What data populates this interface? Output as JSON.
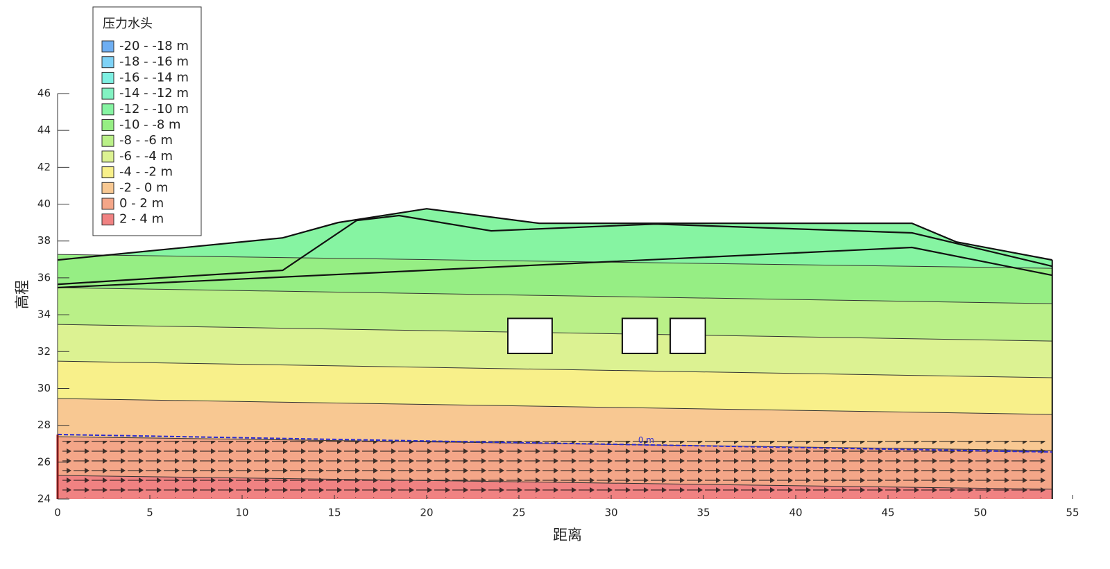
{
  "chart_data": {
    "type": "contour",
    "xlabel": "距离",
    "ylabel": "高程",
    "legend_title": "压力水头",
    "xlim": [
      0,
      55
    ],
    "ylim": [
      24,
      46
    ],
    "xticks": [
      0,
      5,
      10,
      15,
      20,
      25,
      30,
      35,
      40,
      45,
      50,
      55
    ],
    "yticks": [
      24,
      26,
      28,
      30,
      32,
      34,
      36,
      38,
      40,
      42,
      44,
      46
    ],
    "surface": {
      "x": [
        0,
        12.2,
        15.2,
        20.0,
        26.1,
        46.3,
        48.7,
        53.9
      ],
      "y": [
        36.97,
        38.17,
        39.0,
        39.75,
        38.96,
        38.96,
        37.95,
        36.97
      ]
    },
    "layers": [
      {
        "x": [
          0,
          12.2,
          16.2,
          18.5,
          23.5,
          32.4,
          46.3,
          53.9
        ],
        "y": [
          35.65,
          36.41,
          39.11,
          39.38,
          38.55,
          38.92,
          38.44,
          36.63
        ]
      },
      {
        "x": [
          0,
          46.3,
          53.9
        ],
        "y": [
          35.47,
          37.65,
          36.14
        ]
      }
    ],
    "openings": [
      {
        "x": [
          24.4,
          26.8
        ],
        "y": [
          31.9,
          33.8
        ]
      },
      {
        "x": [
          30.6,
          32.5
        ],
        "y": [
          31.9,
          33.8
        ]
      },
      {
        "x": [
          33.2,
          35.1
        ],
        "y": [
          31.9,
          33.8
        ]
      }
    ],
    "phreatic": {
      "label": "0 m",
      "color": "#2a2ad0",
      "x": [
        0,
        53.9
      ],
      "y": [
        27.5,
        26.55
      ]
    },
    "series": [
      {
        "name": "-20 - -18 m",
        "color": "#6eaef2"
      },
      {
        "name": "-18 - -16 m",
        "color": "#7ed2f6"
      },
      {
        "name": "-16 - -14 m",
        "color": "#7ef0e2"
      },
      {
        "name": "-14 - -12 m",
        "color": "#82f2c2"
      },
      {
        "name": "-12 - -10 m",
        "color": "#86f4a2",
        "x": [
          0,
          53.9
        ],
        "y": [
          37.27,
          36.52
        ]
      },
      {
        "name": "-10 - -8 m",
        "color": "#96ee84",
        "x": [
          0,
          53.9
        ],
        "y": [
          35.47,
          34.6
        ]
      },
      {
        "name": "-8 - -6 m",
        "color": "#baf088",
        "x": [
          0,
          53.9
        ],
        "y": [
          33.47,
          32.57
        ]
      },
      {
        "name": "-6 - -4 m",
        "color": "#dcf292",
        "x": [
          0,
          53.9
        ],
        "y": [
          31.48,
          30.58
        ]
      },
      {
        "name": "-4 - -2 m",
        "color": "#f8f08a",
        "x": [
          0,
          53.9
        ],
        "y": [
          29.45,
          28.59
        ]
      },
      {
        "name": "-2 - 0 m",
        "color": "#f8c892",
        "x": [
          0,
          53.9
        ],
        "y": [
          27.38,
          26.63
        ]
      },
      {
        "name": "0 - 2 m",
        "color": "#f4a688",
        "x": [
          0,
          53.9
        ],
        "y": [
          25.28,
          24.53
        ]
      },
      {
        "name": "2 - 4 m",
        "color": "#f08282"
      }
    ]
  }
}
